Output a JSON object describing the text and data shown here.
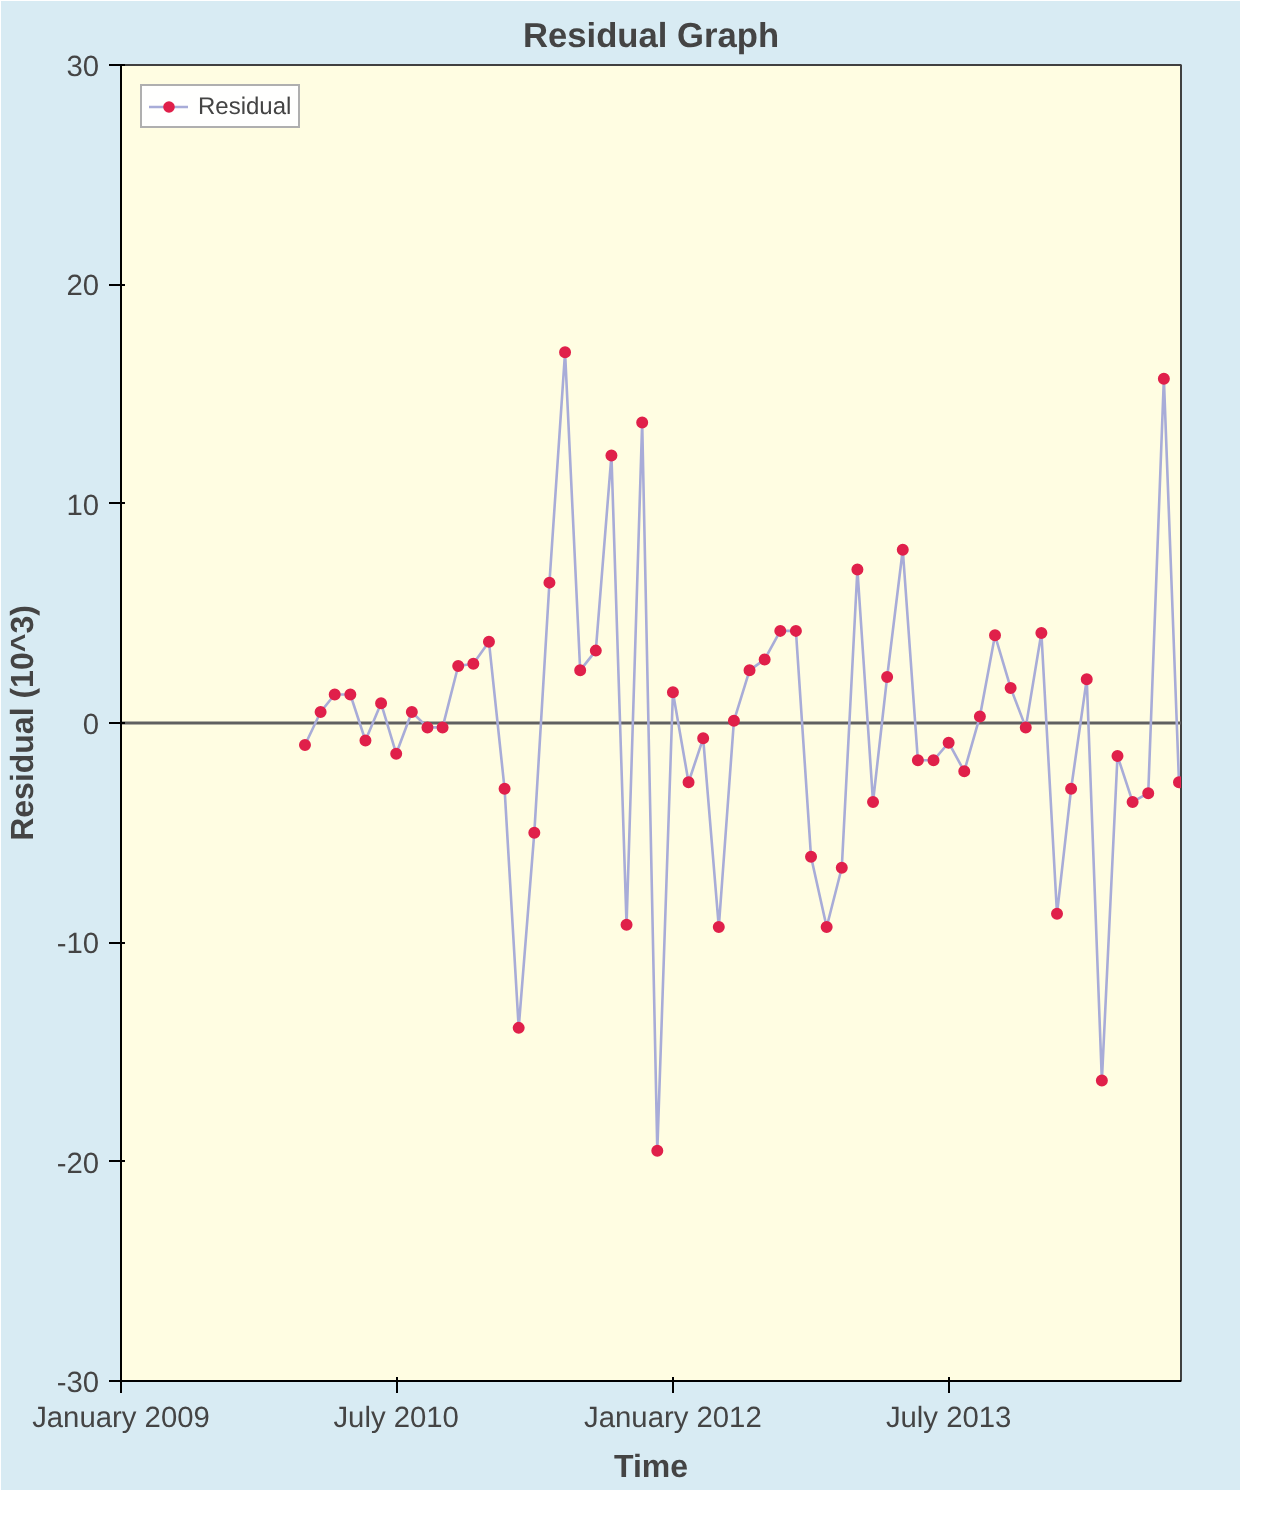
{
  "chart_data": {
    "type": "line",
    "title": "Residual Graph",
    "xlabel": "Time",
    "ylabel": "Residual (10^3)",
    "x": [
      "2010-01",
      "2010-02",
      "2010-03",
      "2010-04",
      "2010-05",
      "2010-06",
      "2010-07",
      "2010-08",
      "2010-09",
      "2010-10",
      "2010-11",
      "2010-12",
      "2011-01",
      "2011-02",
      "2011-03",
      "2011-04",
      "2011-05",
      "2011-06",
      "2011-07",
      "2011-08",
      "2011-09",
      "2011-10",
      "2011-11",
      "2011-12",
      "2012-01",
      "2012-02",
      "2012-03",
      "2012-04",
      "2012-05",
      "2012-06",
      "2012-07",
      "2012-08",
      "2012-09",
      "2012-10",
      "2012-11",
      "2012-12",
      "2013-01",
      "2013-02",
      "2013-03",
      "2013-04",
      "2013-05",
      "2013-06",
      "2013-07",
      "2013-08",
      "2013-09",
      "2013-10",
      "2013-11",
      "2013-12",
      "2014-01",
      "2014-02",
      "2014-03",
      "2014-04",
      "2014-05",
      "2014-06",
      "2014-07",
      "2014-08",
      "2014-09",
      "2014-10"
    ],
    "series": [
      {
        "name": "Residual",
        "color": "#e0204a",
        "values": [
          -1.0,
          0.5,
          1.3,
          1.3,
          -0.8,
          0.9,
          -1.4,
          0.5,
          -0.2,
          -0.2,
          2.6,
          2.7,
          3.7,
          -3.0,
          -13.9,
          -5.0,
          6.4,
          16.9,
          2.4,
          3.3,
          12.2,
          -9.2,
          13.7,
          -19.5,
          1.4,
          -2.7,
          -0.7,
          -9.3,
          0.1,
          2.4,
          2.9,
          4.2,
          4.2,
          -6.1,
          -9.3,
          -6.6,
          7.0,
          -3.6,
          2.1,
          7.9,
          -1.7,
          -1.7,
          -0.9,
          -2.2,
          0.3,
          4.0,
          1.6,
          -0.2,
          4.1,
          -8.7,
          -3.0,
          2.0,
          -16.3,
          -1.5,
          -3.6,
          -3.2,
          15.7,
          -2.7
        ]
      }
    ],
    "xlim": [
      "2009-01",
      "2014-10-05"
    ],
    "xticks": [
      {
        "value": "2009-01",
        "label": "January 2009"
      },
      {
        "value": "2010-07",
        "label": "July 2010"
      },
      {
        "value": "2012-01",
        "label": "January 2012"
      },
      {
        "value": "2013-07",
        "label": "July 2013"
      }
    ],
    "ylim": [
      -30,
      30
    ],
    "yticks": [
      -30,
      -20,
      -10,
      0,
      10,
      20,
      30
    ],
    "ref_lines": [
      {
        "axis": "y",
        "value": 0,
        "color": "#606060"
      }
    ],
    "grid": false,
    "legend": "top left",
    "marker": "circle",
    "line_style": "solid"
  }
}
